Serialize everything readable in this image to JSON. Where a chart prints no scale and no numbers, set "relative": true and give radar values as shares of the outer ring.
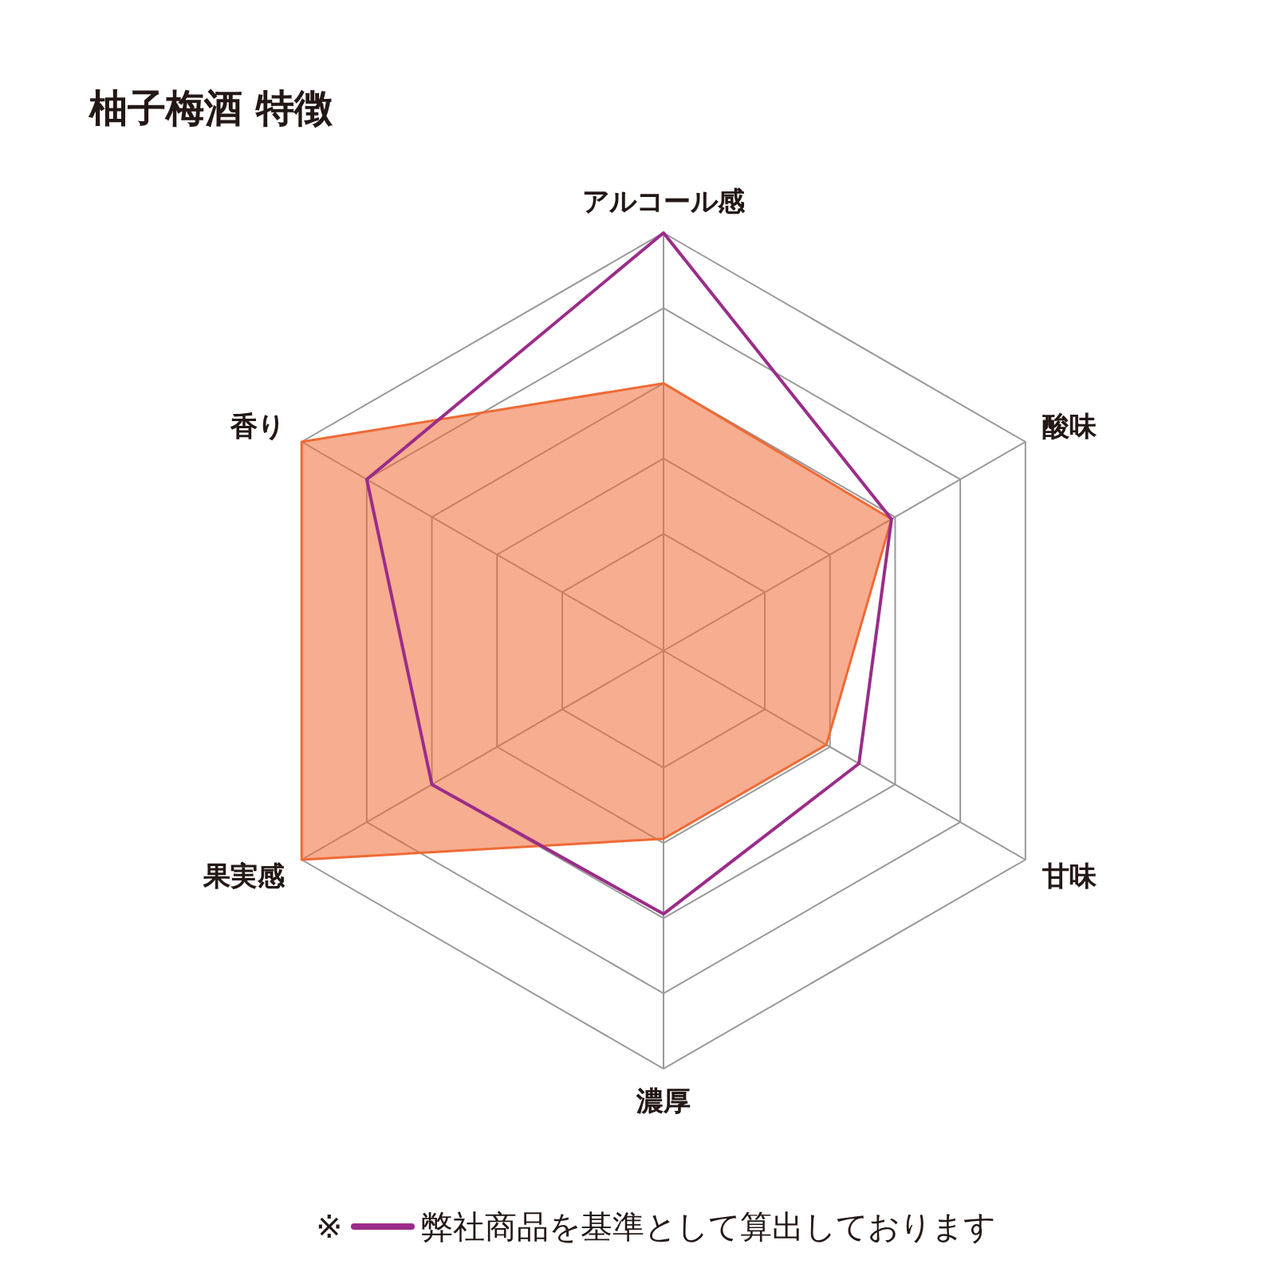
{
  "chart_data": {
    "type": "radar",
    "title": "柚子梅酒 特徴",
    "relative": true,
    "grid": true,
    "legend": "bottom right",
    "legend_title": "※",
    "categories": [
      "アルコール感",
      "酸味",
      "甘味",
      "濃厚",
      "果実感",
      "香り"
    ],
    "series": [
      {
        "color": "#ef6a35",
        "values": [
          0.64,
          0.63,
          0.45,
          0.45,
          1,
          1
        ]
      },
      {
        "name": "弊社商品を基準として算出しております",
        "color": "#9b2c8a",
        "values": [
          1,
          0.63,
          0.54,
          0.63,
          0.64,
          0.82
        ]
      }
    ]
  }
}
